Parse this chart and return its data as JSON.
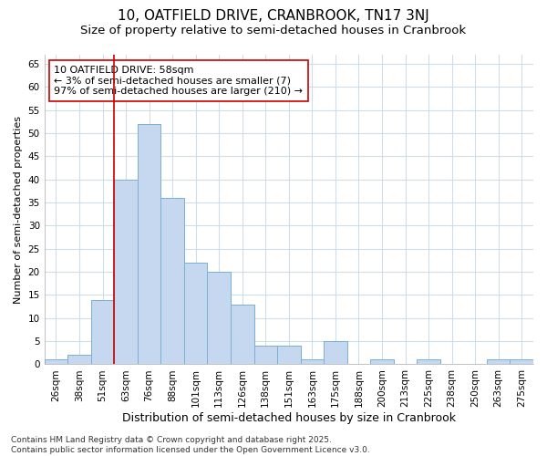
{
  "title1": "10, OATFIELD DRIVE, CRANBROOK, TN17 3NJ",
  "title2": "Size of property relative to semi-detached houses in Cranbrook",
  "xlabel": "Distribution of semi-detached houses by size in Cranbrook",
  "ylabel": "Number of semi-detached properties",
  "bin_labels": [
    "26sqm",
    "38sqm",
    "51sqm",
    "63sqm",
    "76sqm",
    "88sqm",
    "101sqm",
    "113sqm",
    "126sqm",
    "138sqm",
    "151sqm",
    "163sqm",
    "175sqm",
    "188sqm",
    "200sqm",
    "213sqm",
    "225sqm",
    "238sqm",
    "250sqm",
    "263sqm",
    "275sqm"
  ],
  "bar_heights": [
    1,
    2,
    14,
    40,
    52,
    36,
    22,
    20,
    13,
    4,
    4,
    1,
    5,
    0,
    1,
    0,
    1,
    0,
    0,
    1,
    1
  ],
  "bar_color": "#c5d8f0",
  "bar_edgecolor": "#7aafd4",
  "background_color": "#ffffff",
  "grid_color": "#d0dce8",
  "vline_color": "#cc0000",
  "vline_x_index": 3,
  "annotation_text": "10 OATFIELD DRIVE: 58sqm\n← 3% of semi-detached houses are smaller (7)\n97% of semi-detached houses are larger (210) →",
  "annotation_box_edgecolor": "#cc0000",
  "footer_text": "Contains HM Land Registry data © Crown copyright and database right 2025.\nContains public sector information licensed under the Open Government Licence v3.0.",
  "ylim": [
    0,
    67
  ],
  "yticks": [
    0,
    5,
    10,
    15,
    20,
    25,
    30,
    35,
    40,
    45,
    50,
    55,
    60,
    65
  ],
  "title1_fontsize": 11,
  "title2_fontsize": 9.5,
  "xlabel_fontsize": 9,
  "ylabel_fontsize": 8,
  "tick_fontsize": 7.5,
  "annotation_fontsize": 8,
  "footer_fontsize": 6.5
}
